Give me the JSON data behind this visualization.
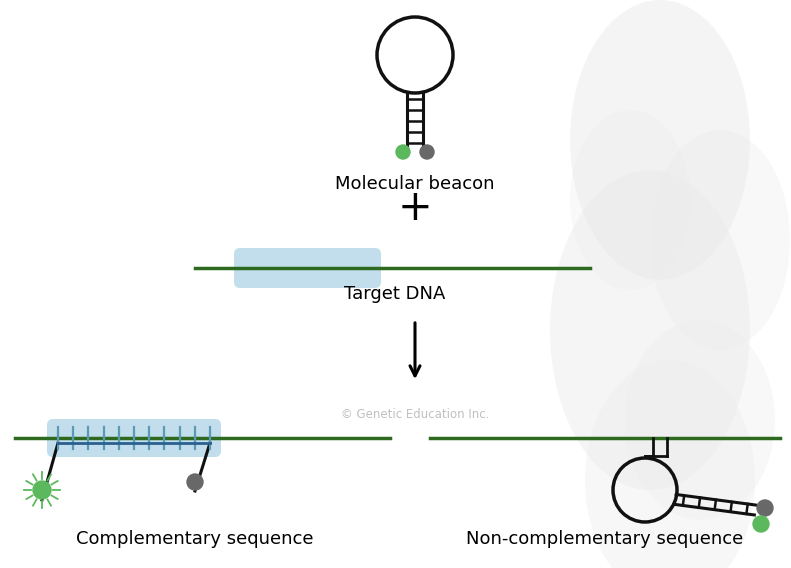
{
  "bg_color": "#ffffff",
  "helix_color": "#ebebeb",
  "green_color": "#5cb85c",
  "gray_color": "#686868",
  "dark_green": "#2d6a1f",
  "blue_fill": "#b8d9ea",
  "blue_stroke": "#5a9ab5",
  "stem_color": "#111111",
  "title_molecular": "Molecular beacon",
  "title_target": "Target DNA",
  "title_comp": "Complementary sequence",
  "title_noncomp": "Non-complementary sequence",
  "plus_sign": "+",
  "copyright": "© Genetic Education Inc.",
  "font_size_label": 13,
  "font_size_plus": 30
}
